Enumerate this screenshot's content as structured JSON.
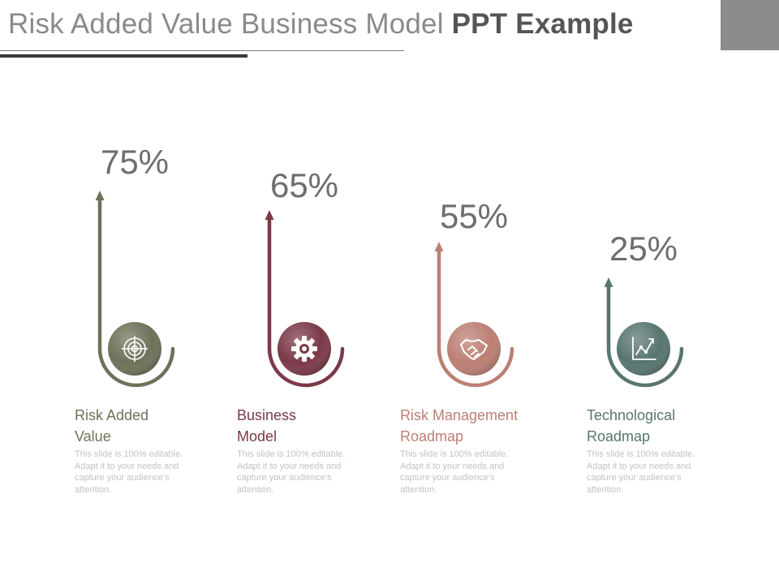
{
  "title": {
    "regular": "Risk Added Value Business Model",
    "bold": "PPT Example"
  },
  "colors": {
    "title_regular": "#8a8a8a",
    "title_bold": "#555555",
    "description": "#c2c2c2"
  },
  "items": [
    {
      "percent": "75%",
      "label_line1": "Risk Added",
      "label_line2": "Value",
      "description": "This slide is 100% editable. Adapt it to your needs and capture your audience's attention.",
      "color": "#6d7259",
      "icon": "target-icon"
    },
    {
      "percent": "65%",
      "label_line1": "Business",
      "label_line2": "Model",
      "description": "This slide is 100% editable. Adapt it to your needs and capture your audience's attention.",
      "color": "#7b3948",
      "icon": "gear-icon"
    },
    {
      "percent": "55%",
      "label_line1": "Risk Management",
      "label_line2": "Roadmap",
      "description": "This slide is 100% editable. Adapt it to your needs and capture your audience's attention.",
      "color": "#bc7f74",
      "icon": "handshake-icon"
    },
    {
      "percent": "25%",
      "label_line1": "Technological",
      "label_line2": "Roadmap",
      "description": "This slide is 100% editable. Adapt it to your needs and capture your audience's attention.",
      "color": "#587570",
      "icon": "line-chart-icon"
    }
  ]
}
